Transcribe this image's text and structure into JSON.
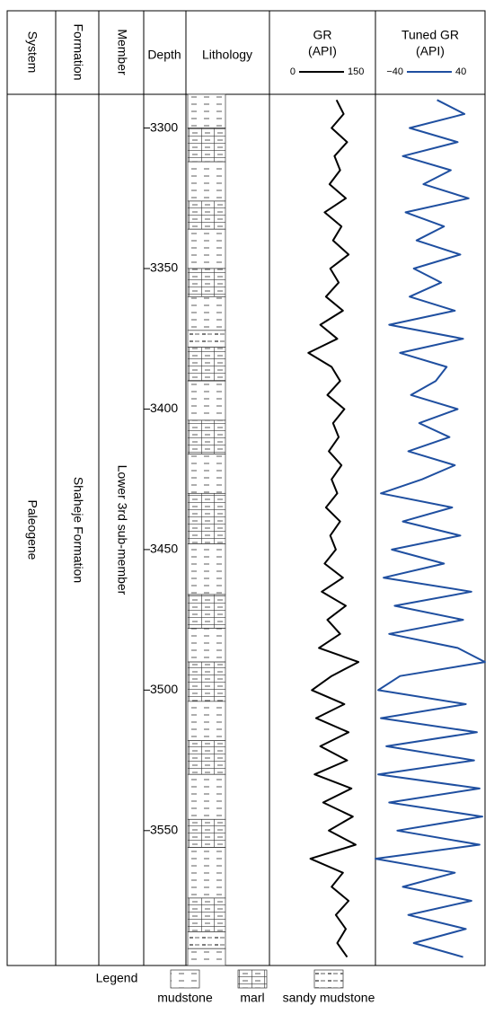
{
  "chart_data": {
    "type": "line",
    "columns": {
      "system": "System",
      "formation": "Formation",
      "member": "Member",
      "depth": "Depth",
      "lithology": "Lithology"
    },
    "units": {
      "system": "Paleogene",
      "formation": "Shaheje Formation",
      "member": "Lower 3rd sub-member"
    },
    "x": [
      3290,
      3295,
      3300,
      3305,
      3310,
      3315,
      3320,
      3325,
      3330,
      3335,
      3340,
      3345,
      3350,
      3355,
      3360,
      3365,
      3370,
      3375,
      3380,
      3385,
      3390,
      3395,
      3400,
      3405,
      3410,
      3415,
      3420,
      3425,
      3430,
      3435,
      3440,
      3445,
      3450,
      3455,
      3460,
      3465,
      3470,
      3475,
      3480,
      3485,
      3490,
      3495,
      3500,
      3505,
      3510,
      3515,
      3520,
      3525,
      3530,
      3535,
      3540,
      3545,
      3550,
      3555,
      3560,
      3565,
      3570,
      3575,
      3580,
      3585,
      3590,
      3595
    ],
    "ylim": [
      3288,
      3598
    ],
    "yticks": [
      3300,
      3350,
      3400,
      3450,
      3500,
      3550
    ],
    "series": [
      {
        "name": "GR",
        "unit": "(API)",
        "color": "#000000",
        "xlim": [
          0,
          150
        ],
        "xticks": [
          0,
          150
        ],
        "values": [
          95,
          105,
          88,
          110,
          92,
          100,
          85,
          108,
          78,
          102,
          90,
          112,
          86,
          98,
          80,
          104,
          72,
          96,
          55,
          88,
          100,
          82,
          106,
          90,
          98,
          84,
          102,
          88,
          96,
          80,
          100,
          86,
          94,
          78,
          104,
          74,
          108,
          82,
          100,
          70,
          126,
          88,
          60,
          106,
          66,
          112,
          72,
          110,
          64,
          116,
          76,
          118,
          84,
          122,
          58,
          104,
          88,
          112,
          94,
          108,
          96,
          110
        ]
      },
      {
        "name": "Tuned GR",
        "unit": "(API)",
        "color": "#1f4fa0",
        "xlim": [
          -40,
          40
        ],
        "xticks": [
          {
            "value": -40,
            "label": "−40"
          },
          40
        ],
        "values": [
          5,
          25,
          -15,
          20,
          -20,
          15,
          -5,
          28,
          -18,
          10,
          -10,
          22,
          -12,
          8,
          -15,
          18,
          -30,
          24,
          -22,
          12,
          4,
          -14,
          20,
          -8,
          14,
          -16,
          18,
          -6,
          -36,
          16,
          -20,
          22,
          -28,
          10,
          -34,
          30,
          -26,
          24,
          -30,
          20,
          40,
          -22,
          -38,
          26,
          -36,
          34,
          -32,
          32,
          -38,
          36,
          -30,
          38,
          -24,
          36,
          -40,
          18,
          -20,
          30,
          -16,
          26,
          -12,
          24
        ]
      }
    ],
    "lithology": [
      {
        "top": 3288,
        "bottom": 3300,
        "type": "mudstone"
      },
      {
        "top": 3300,
        "bottom": 3312,
        "type": "marl"
      },
      {
        "top": 3312,
        "bottom": 3326,
        "type": "mudstone"
      },
      {
        "top": 3326,
        "bottom": 3336,
        "type": "marl"
      },
      {
        "top": 3336,
        "bottom": 3350,
        "type": "mudstone"
      },
      {
        "top": 3350,
        "bottom": 3360,
        "type": "marl"
      },
      {
        "top": 3360,
        "bottom": 3372,
        "type": "mudstone"
      },
      {
        "top": 3372,
        "bottom": 3378,
        "type": "sandy mudstone"
      },
      {
        "top": 3378,
        "bottom": 3390,
        "type": "marl"
      },
      {
        "top": 3390,
        "bottom": 3404,
        "type": "mudstone"
      },
      {
        "top": 3404,
        "bottom": 3416,
        "type": "marl"
      },
      {
        "top": 3416,
        "bottom": 3430,
        "type": "mudstone"
      },
      {
        "top": 3430,
        "bottom": 3448,
        "type": "marl"
      },
      {
        "top": 3448,
        "bottom": 3466,
        "type": "mudstone"
      },
      {
        "top": 3466,
        "bottom": 3478,
        "type": "marl"
      },
      {
        "top": 3478,
        "bottom": 3490,
        "type": "mudstone"
      },
      {
        "top": 3490,
        "bottom": 3504,
        "type": "marl"
      },
      {
        "top": 3504,
        "bottom": 3518,
        "type": "mudstone"
      },
      {
        "top": 3518,
        "bottom": 3530,
        "type": "marl"
      },
      {
        "top": 3530,
        "bottom": 3546,
        "type": "mudstone"
      },
      {
        "top": 3546,
        "bottom": 3556,
        "type": "marl"
      },
      {
        "top": 3556,
        "bottom": 3574,
        "type": "mudstone"
      },
      {
        "top": 3574,
        "bottom": 3586,
        "type": "marl"
      },
      {
        "top": 3586,
        "bottom": 3592,
        "type": "sandy mudstone"
      },
      {
        "top": 3592,
        "bottom": 3598,
        "type": "mudstone"
      }
    ],
    "legend": {
      "title": "Legend",
      "items": [
        "mudstone",
        "marl",
        "sandy mudstone"
      ]
    }
  }
}
